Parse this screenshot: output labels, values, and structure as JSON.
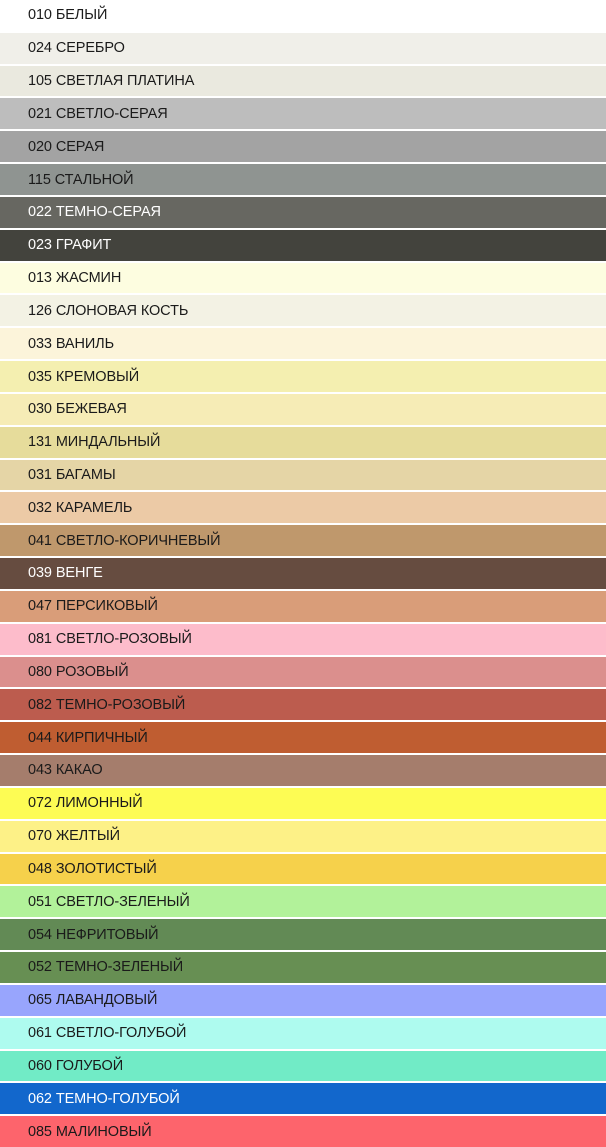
{
  "colors": [
    {
      "label": "010 БЕЛЫЙ",
      "color": "#ffffff",
      "text": "#1a1a1a"
    },
    {
      "label": "024 СЕРЕБРО",
      "color": "#f0efe9",
      "text": "#1a1a1a"
    },
    {
      "label": "105 СВЕТЛАЯ ПЛАТИНА",
      "color": "#eae9df",
      "text": "#1a1a1a"
    },
    {
      "label": "021 СВЕТЛО-СЕРАЯ",
      "color": "#bdbdbd",
      "text": "#1a1a1a"
    },
    {
      "label": "020 СЕРАЯ",
      "color": "#a3a3a3",
      "text": "#1a1a1a"
    },
    {
      "label": "115 СТАЛЬНОЙ",
      "color": "#8f9491",
      "text": "#1a1a1a"
    },
    {
      "label": "022 ТЕМНО-СЕРАЯ",
      "color": "#676761",
      "text": "#ffffff"
    },
    {
      "label": "023 ГРАФИТ",
      "color": "#43433d",
      "text": "#ffffff"
    },
    {
      "label": "013 ЖАСМИН",
      "color": "#fdfde0",
      "text": "#1a1a1a"
    },
    {
      "label": "126 СЛОНОВАЯ КОСТЬ",
      "color": "#f3f2e4",
      "text": "#1a1a1a"
    },
    {
      "label": "033 ВАНИЛЬ",
      "color": "#fcf4da",
      "text": "#1a1a1a"
    },
    {
      "label": "035 КРЕМОВЫЙ",
      "color": "#f4efb0",
      "text": "#1a1a1a"
    },
    {
      "label": "030 БЕЖЕВАЯ",
      "color": "#f6ecb6",
      "text": "#1a1a1a"
    },
    {
      "label": "131 МИНДАЛЬНЫЙ",
      "color": "#e6dc9b",
      "text": "#1a1a1a"
    },
    {
      "label": "031 БАГАМЫ",
      "color": "#e5d5a6",
      "text": "#1a1a1a"
    },
    {
      "label": "032 КАРАМЕЛЬ",
      "color": "#eccaa6",
      "text": "#1a1a1a"
    },
    {
      "label": "041 СВЕТЛО-КОРИЧНЕВЫЙ",
      "color": "#bf986c",
      "text": "#1a1a1a"
    },
    {
      "label": "039 ВЕНГЕ",
      "color": "#664c40",
      "text": "#ffffff"
    },
    {
      "label": "047 ПЕРСИКОВЫЙ",
      "color": "#d99d79",
      "text": "#1a1a1a"
    },
    {
      "label": "081 СВЕТЛО-РОЗОВЫЙ",
      "color": "#fdbccb",
      "text": "#1a1a1a"
    },
    {
      "label": "080 РОЗОВЫЙ",
      "color": "#db8f8d",
      "text": "#1a1a1a"
    },
    {
      "label": "082 ТЕМНО-РОЗОВЫЙ",
      "color": "#bc5c4e",
      "text": "#1a1a1a"
    },
    {
      "label": "044 КИРПИЧНЫЙ",
      "color": "#bf5d31",
      "text": "#1a1a1a"
    },
    {
      "label": "043 КАКАО",
      "color": "#a57d6c",
      "text": "#1a1a1a"
    },
    {
      "label": "072 ЛИМОННЫЙ",
      "color": "#fdfc54",
      "text": "#1a1a1a"
    },
    {
      "label": "070 ЖЕЛТЫЙ",
      "color": "#fdf187",
      "text": "#1a1a1a"
    },
    {
      "label": "048 ЗОЛОТИСТЫЙ",
      "color": "#f6d14b",
      "text": "#1a1a1a"
    },
    {
      "label": "051 СВЕТЛО-ЗЕЛЕНЫЙ",
      "color": "#b2f29a",
      "text": "#1a1a1a"
    },
    {
      "label": "054 НЕФРИТОВЫЙ",
      "color": "#628a55",
      "text": "#1a1a1a"
    },
    {
      "label": "052 ТЕМНО-ЗЕЛЕНЫЙ",
      "color": "#678f53",
      "text": "#1a1a1a"
    },
    {
      "label": "065 ЛАВАНДОВЫЙ",
      "color": "#98a5fd",
      "text": "#1a1a1a"
    },
    {
      "label": "061 СВЕТЛО-ГОЛУБОЙ",
      "color": "#aefbef",
      "text": "#1a1a1a"
    },
    {
      "label": "060 ГОЛУБОЙ",
      "color": "#71ebc6",
      "text": "#1a1a1a"
    },
    {
      "label": "062 ТЕМНО-ГОЛУБОЙ",
      "color": "#1267cc",
      "text": "#ffffff"
    },
    {
      "label": "085 МАЛИНОВЫЙ",
      "color": "#fd646c",
      "text": "#1a1a1a"
    }
  ]
}
